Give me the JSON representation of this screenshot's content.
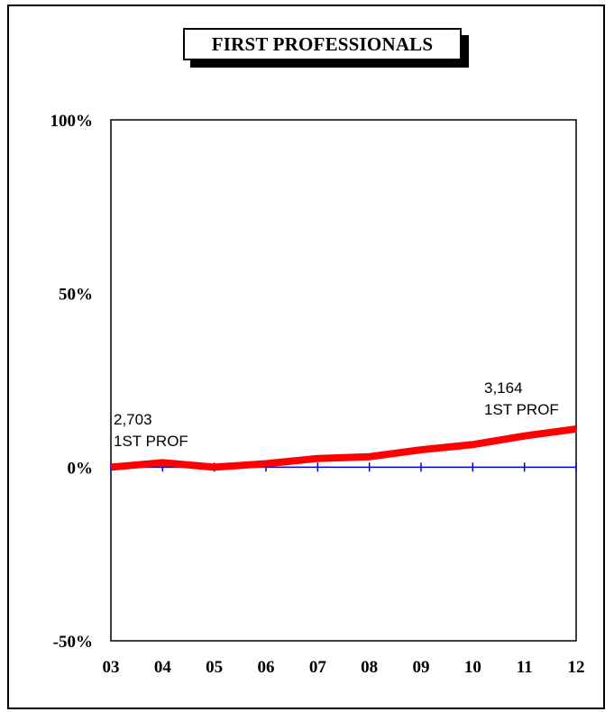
{
  "chart_data": {
    "type": "line",
    "title": "FIRST PROFESSIONALS",
    "xlabel": "",
    "ylabel": "",
    "categories": [
      "03",
      "04",
      "05",
      "06",
      "07",
      "08",
      "09",
      "10",
      "11",
      "12"
    ],
    "series": [
      {
        "values": [
          0,
          1.3,
          0,
          1,
          2.5,
          3,
          5,
          6.5,
          9,
          11
        ],
        "color": "#ff0000"
      }
    ],
    "baseline": {
      "value": 0,
      "color": "#0000cc"
    },
    "ylim": [
      -50,
      100
    ],
    "yticks": [
      {
        "value": 100,
        "label": "100%"
      },
      {
        "value": 50,
        "label": "50%"
      },
      {
        "value": 0,
        "label": "0%"
      },
      {
        "value": -50,
        "label": "-50%"
      }
    ],
    "annotations": [
      {
        "category": "03",
        "lines": [
          "2,703",
          "1ST PROF"
        ]
      },
      {
        "category": "12",
        "lines": [
          "3,164",
          "1ST PROF"
        ]
      }
    ],
    "grid": false,
    "legend": "none"
  }
}
